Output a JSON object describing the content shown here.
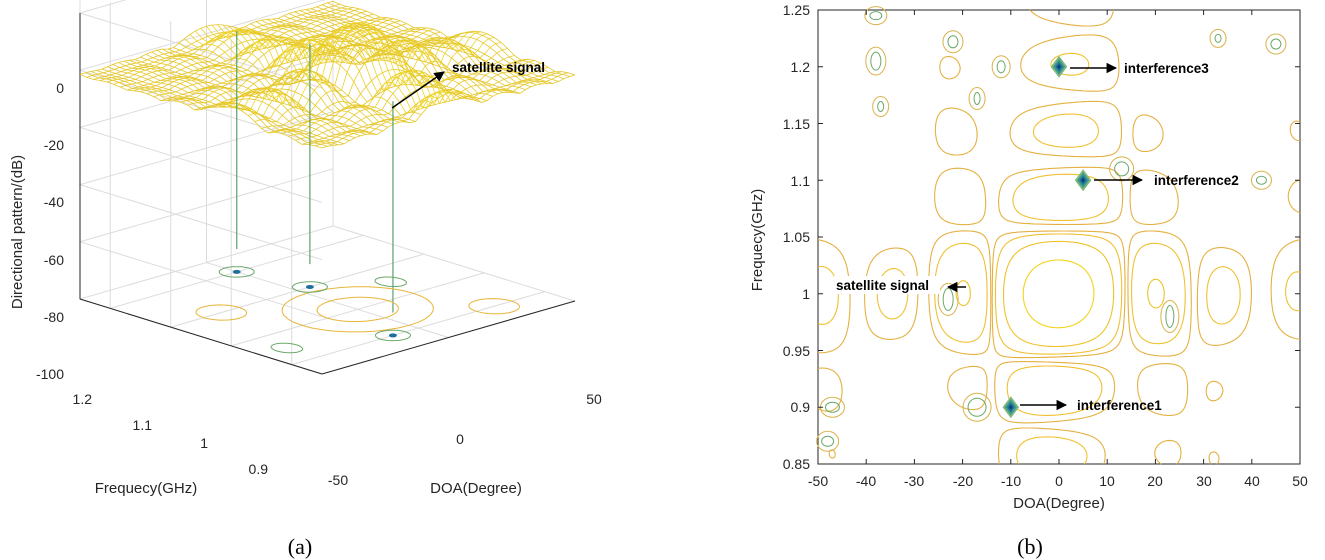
{
  "chart_data": [
    {
      "panel": "(a)",
      "type": "surface",
      "zlabel": "Directional pattern/(dB)",
      "xlabel": "DOA(Degree)",
      "ylabel": "Frequecy(GHz)",
      "zlim": [
        -100,
        0
      ],
      "xlim": [
        -50,
        50
      ],
      "ylim": [
        0.85,
        1.25
      ],
      "z_ticks": [
        "0",
        "-20",
        "-40",
        "-60",
        "-80",
        "-100"
      ],
      "x_ticks": [
        "-50",
        "0",
        "50"
      ],
      "y_ticks": [
        "1.2",
        "1.1",
        "1",
        "0.9"
      ],
      "grid": true,
      "annotations": [
        {
          "text": "satellite signal",
          "x": 0,
          "y": 1.0
        }
      ],
      "nulls": [
        {
          "x": -10,
          "y": 0.9
        },
        {
          "x": 5,
          "y": 1.1
        },
        {
          "x": 0,
          "y": 1.2
        }
      ]
    },
    {
      "panel": "(b)",
      "type": "contour",
      "xlabel": "DOA(Degree)",
      "ylabel": "Frequecy(GHz)",
      "xlim": [
        -50,
        50
      ],
      "ylim": [
        0.85,
        1.25
      ],
      "x_ticks": [
        "-50",
        "-40",
        "-30",
        "-20",
        "-10",
        "0",
        "10",
        "20",
        "30",
        "40",
        "50"
      ],
      "y_ticks": [
        "1.25",
        "1.2",
        "1.15",
        "1.1",
        "1.05",
        "1",
        "0.95",
        "0.9",
        "0.85"
      ],
      "grid": false,
      "annotations": [
        {
          "text": "interference3",
          "x": 0,
          "y": 1.2
        },
        {
          "text": "interference2",
          "x": 5,
          "y": 1.1
        },
        {
          "text": "satellite signal",
          "x": -20,
          "y": 1.005
        },
        {
          "text": "interference1",
          "x": -10,
          "y": 0.9
        }
      ],
      "interference_points": [
        {
          "x": 0,
          "y": 1.2
        },
        {
          "x": 5,
          "y": 1.1
        },
        {
          "x": -10,
          "y": 0.9
        }
      ]
    }
  ],
  "captions": {
    "a": "(a)",
    "b": "(b)"
  }
}
